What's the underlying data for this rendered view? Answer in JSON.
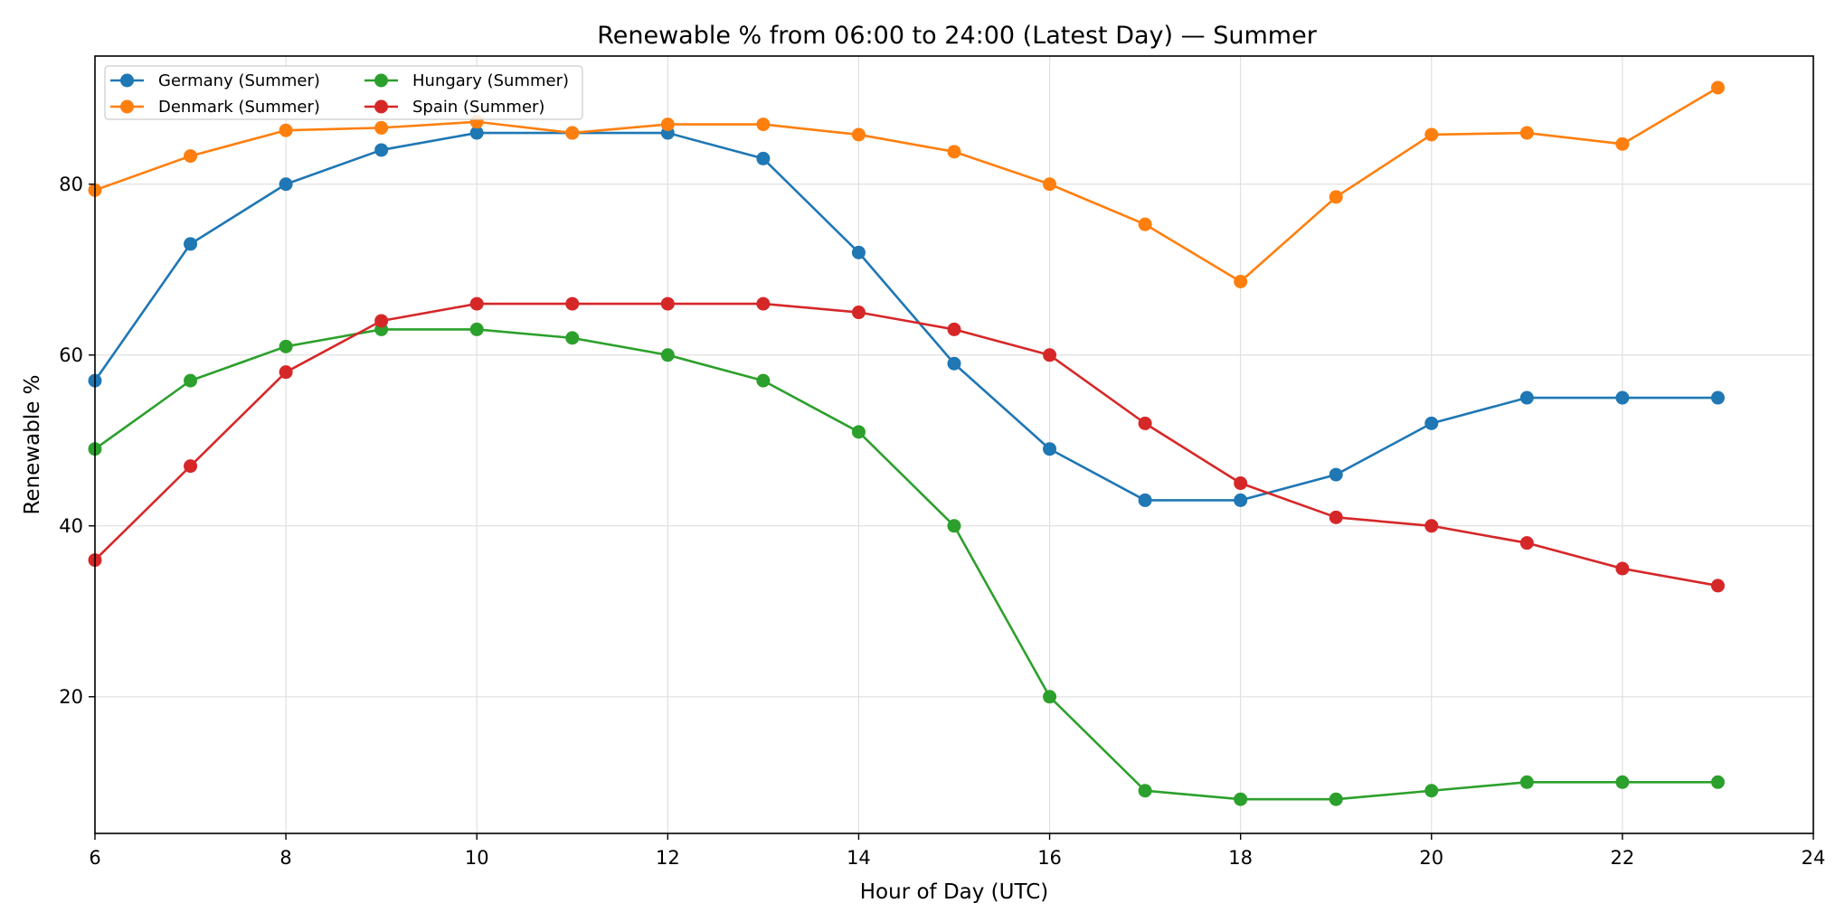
{
  "chart_data": {
    "type": "line",
    "title": "Renewable % from 06:00 to 24:00 (Latest Day) — Summer",
    "xlabel": "Hour of Day (UTC)",
    "ylabel": "Renewable %",
    "xlim": [
      6,
      24
    ],
    "ylim": [
      4,
      95
    ],
    "x_ticks": [
      6,
      8,
      10,
      12,
      14,
      16,
      18,
      20,
      22,
      24
    ],
    "y_ticks": [
      20,
      40,
      60,
      80
    ],
    "grid": true,
    "legend_position": "top-left",
    "legend_columns": 2,
    "x": [
      6,
      7,
      8,
      9,
      10,
      11,
      12,
      13,
      14,
      15,
      16,
      17,
      18,
      19,
      20,
      21,
      22,
      23
    ],
    "series": [
      {
        "name": "Germany (Summer)",
        "color": "#1f77b4",
        "values": [
          57,
          73,
          80,
          84,
          86,
          86,
          86,
          83,
          72,
          59,
          49,
          43,
          43,
          46,
          52,
          55,
          55,
          55
        ]
      },
      {
        "name": "Denmark (Summer)",
        "color": "#ff7f0e",
        "values": [
          79.3,
          83.3,
          86.3,
          86.6,
          87.3,
          86,
          87,
          87,
          85.8,
          83.8,
          80,
          75.3,
          68.6,
          78.5,
          85.8,
          86,
          84.7,
          91.3
        ]
      },
      {
        "name": "Hungary (Summer)",
        "color": "#2ca02c",
        "values": [
          49,
          57,
          61,
          63,
          63,
          62,
          60,
          57,
          51,
          40,
          20,
          9,
          8,
          8,
          9,
          10,
          10,
          10
        ]
      },
      {
        "name": "Spain (Summer)",
        "color": "#d62728",
        "values": [
          36,
          47,
          58,
          64,
          66,
          66,
          66,
          66,
          65,
          63,
          60,
          52,
          45,
          41,
          40,
          38,
          35,
          33
        ]
      }
    ]
  }
}
